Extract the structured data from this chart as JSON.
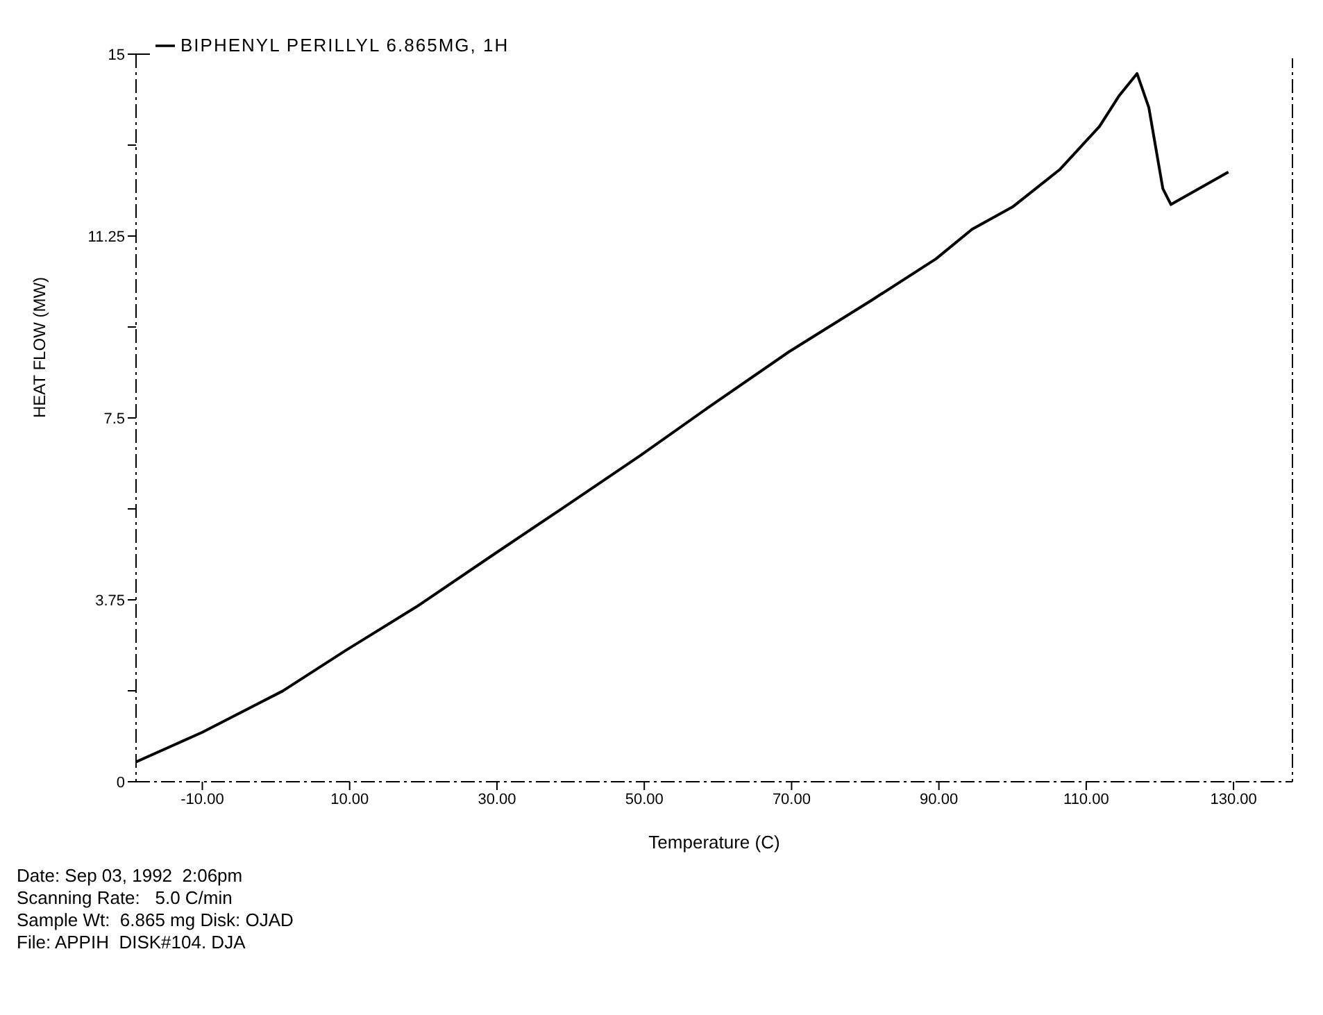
{
  "chart_data": {
    "type": "line",
    "xlabel": "Temperature (C)",
    "ylabel": "HEAT FLOW      (MW)",
    "x": [
      -19,
      -10,
      0.9,
      9.5,
      19.1,
      29.5,
      39.1,
      49.5,
      59.1,
      69.6,
      80.9,
      89.6,
      94.5,
      100,
      106.4,
      111.8,
      114.5,
      116.9,
      118.5,
      120.4,
      121.5,
      129.3
    ],
    "series": [
      {
        "name": "BIPHENYL PERILLYL 6.865MG, 1H",
        "color": "#000000",
        "values": [
          0.41,
          1.02,
          1.87,
          2.71,
          3.61,
          4.68,
          5.66,
          6.73,
          7.76,
          8.86,
          9.93,
          10.78,
          11.39,
          11.85,
          12.62,
          13.51,
          14.15,
          14.6,
          13.9,
          12.23,
          11.9,
          12.57
        ]
      }
    ],
    "xlim": [
      -19,
      138
    ],
    "xticks": [
      {
        "value": -10,
        "label": "-10.00"
      },
      {
        "value": 10,
        "label": "10.00"
      },
      {
        "value": 30,
        "label": "30.00"
      },
      {
        "value": 50,
        "label": "50.00"
      },
      {
        "value": 70,
        "label": "70.00"
      },
      {
        "value": 90,
        "label": "90.00"
      },
      {
        "value": 110,
        "label": "110.00"
      },
      {
        "value": 130,
        "label": "130.00"
      }
    ],
    "ylim": [
      0,
      15
    ],
    "yticks": [
      0,
      {
        "value": 1.875,
        "label": null
      },
      3.75,
      {
        "value": 5.625,
        "label": null
      },
      7.5,
      {
        "value": 9.375,
        "label": null
      },
      11.25,
      {
        "value": 13.125,
        "label": null
      },
      15
    ],
    "legend": "top left",
    "grid": false,
    "marker": "none",
    "line_style": "solid",
    "annotations": [
      "Date: Sep 03, 1992  2:06pm",
      "Scanning Rate:   5.0 C/min",
      "Sample Wt:  6.865 mg Disk: OJAD",
      "File: APPIH  DISK#104. DJA"
    ]
  }
}
